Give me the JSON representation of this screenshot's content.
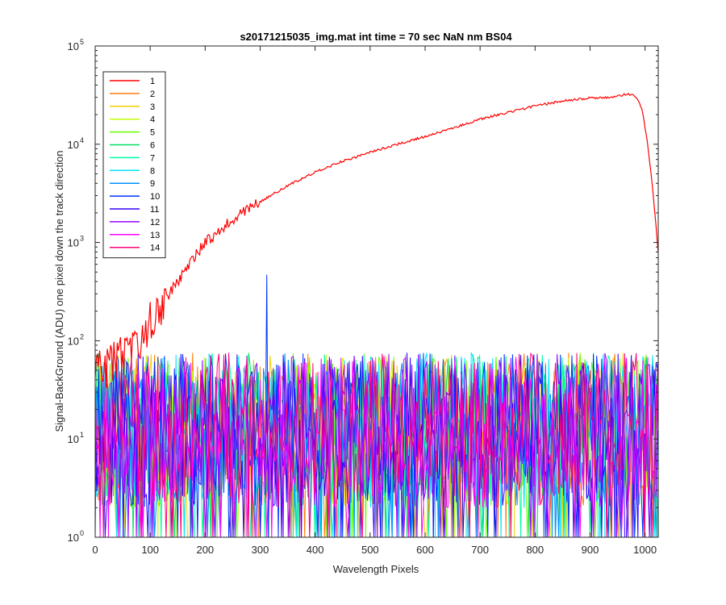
{
  "chart_data": {
    "type": "line",
    "title": "s20171215035_img.mat int time = 70 sec  NaN nm BS04",
    "xlabel": "Wavelength Pixels",
    "ylabel": "Signal-BackGround (ADU) one pixel down the track direction",
    "xlim": [
      0,
      1024
    ],
    "ylim": [
      1,
      100000
    ],
    "yscale": "log",
    "grid": false,
    "legend_position": "top-left",
    "x_ticks": [
      0,
      100,
      200,
      300,
      400,
      500,
      600,
      700,
      800,
      900,
      1000
    ],
    "x_tick_labels": [
      "0",
      "100",
      "200",
      "300",
      "400",
      "500",
      "600",
      "700",
      "800",
      "900",
      "1000"
    ],
    "y_ticks": [
      1,
      10,
      100,
      1000,
      10000,
      100000
    ],
    "y_tick_labels": [
      {
        "base": "10",
        "exp": "0"
      },
      {
        "base": "10",
        "exp": "1"
      },
      {
        "base": "10",
        "exp": "2"
      },
      {
        "base": "10",
        "exp": "3"
      },
      {
        "base": "10",
        "exp": "4"
      },
      {
        "base": "10",
        "exp": "5"
      }
    ],
    "series": [
      {
        "name": "1",
        "color": "#ff0000",
        "kind": "signal",
        "x": [
          0,
          25,
          50,
          75,
          100,
          125,
          150,
          175,
          200,
          250,
          300,
          350,
          400,
          450,
          500,
          550,
          600,
          650,
          700,
          750,
          800,
          850,
          900,
          930,
          950,
          965,
          975,
          985,
          995,
          1005,
          1015,
          1024
        ],
        "y": [
          50,
          55,
          70,
          90,
          150,
          250,
          400,
          650,
          1000,
          1700,
          2600,
          3800,
          5200,
          6700,
          8300,
          10000,
          12000,
          14500,
          18000,
          21000,
          24500,
          27500,
          29500,
          30000,
          31000,
          32000,
          32000,
          30000,
          22000,
          10000,
          3000,
          800
        ]
      },
      {
        "name": "2",
        "color": "#ff7f0e",
        "kind": "noise",
        "seed": 2
      },
      {
        "name": "3",
        "color": "#f0d000",
        "kind": "noise",
        "seed": 3
      },
      {
        "name": "4",
        "color": "#bfff00",
        "kind": "noise",
        "seed": 4
      },
      {
        "name": "5",
        "color": "#66ff00",
        "kind": "noise",
        "seed": 5
      },
      {
        "name": "6",
        "color": "#00e060",
        "kind": "noise",
        "seed": 6
      },
      {
        "name": "7",
        "color": "#00ffa0",
        "kind": "noise",
        "seed": 7
      },
      {
        "name": "8",
        "color": "#00e5ff",
        "kind": "noise",
        "seed": 8
      },
      {
        "name": "9",
        "color": "#0090ff",
        "kind": "noise",
        "seed": 9
      },
      {
        "name": "10",
        "color": "#0033ff",
        "kind": "noise",
        "seed": 10,
        "spike": {
          "x": 311,
          "y": 470
        }
      },
      {
        "name": "11",
        "color": "#3300ff",
        "kind": "noise",
        "seed": 11
      },
      {
        "name": "12",
        "color": "#9900ff",
        "kind": "noise",
        "seed": 12
      },
      {
        "name": "13",
        "color": "#ff00ff",
        "kind": "noise",
        "seed": 13
      },
      {
        "name": "14",
        "color": "#ff0077",
        "kind": "noise",
        "seed": 14
      }
    ]
  }
}
